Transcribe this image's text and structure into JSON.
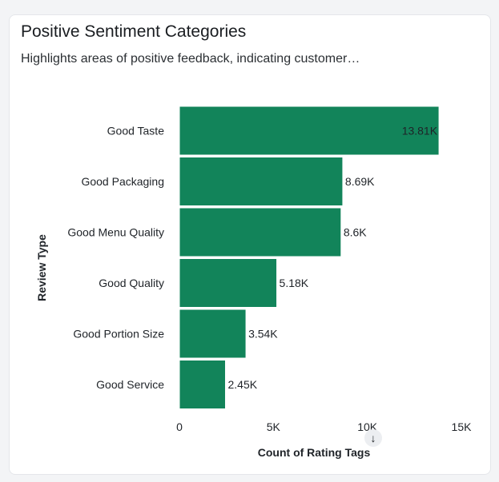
{
  "card": {
    "title": "Positive Sentiment Categories",
    "subtitle": "Highlights areas of positive feedback, indicating customer satisfaction drivers.",
    "subtitle_display": "Highlights areas of positive feedback, indicating customer…"
  },
  "colors": {
    "bar": "#12845a",
    "bar_stroke": "#ffffff",
    "text": "#1f2328"
  },
  "chart_data": {
    "type": "bar",
    "orientation": "horizontal",
    "categories": [
      "Good Taste",
      "Good Packaging",
      "Good Menu Quality",
      "Good Quality",
      "Good Portion Size",
      "Good Service"
    ],
    "values": [
      13810,
      8690,
      8600,
      5180,
      3540,
      2450
    ],
    "data_labels": [
      "13.81K",
      "8.69K",
      "8.6K",
      "5.18K",
      "3.54K",
      "2.45K"
    ],
    "xlim": [
      0,
      15000
    ],
    "x_ticks": [
      0,
      5000,
      10000,
      15000
    ],
    "x_tick_labels": [
      "0",
      "5K",
      "10K",
      "15K"
    ],
    "xlabel": "Count of Rating Tags",
    "ylabel": "Review Type",
    "sort": "descending",
    "sort_icon": "arrow-down-icon"
  }
}
